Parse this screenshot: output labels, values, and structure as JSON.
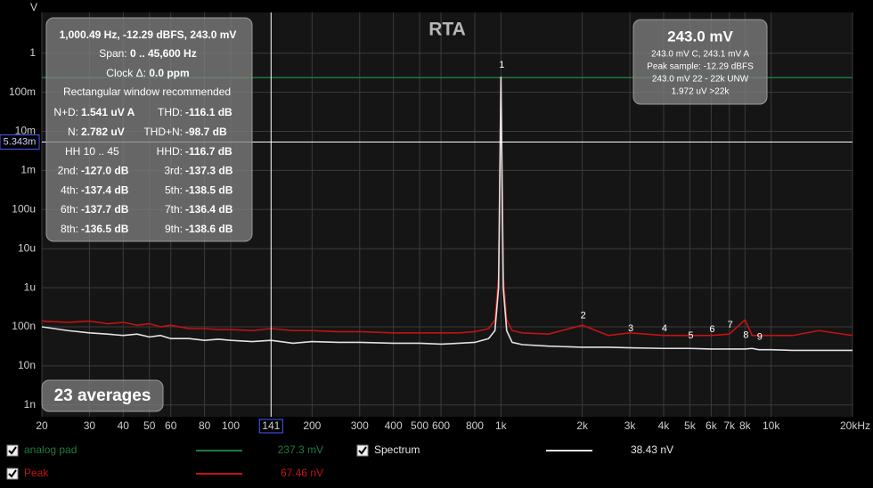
{
  "chart_data": {
    "type": "line",
    "title": "RTA",
    "y_label": "V",
    "log_x": true,
    "log_y": true,
    "grid": true,
    "xlim": [
      20,
      20000
    ],
    "ylim": [
      5e-10,
      11
    ],
    "xticks": [
      20,
      30,
      40,
      50,
      60,
      80,
      100,
      200,
      300,
      400,
      500,
      600,
      800,
      {
        "value": 1000,
        "label": "1k"
      },
      {
        "value": 2000,
        "label": "2k"
      },
      {
        "value": 3000,
        "label": "3k"
      },
      {
        "value": 4000,
        "label": "4k"
      },
      {
        "value": 5000,
        "label": "5k"
      },
      {
        "value": 6000,
        "label": "6k"
      },
      {
        "value": 7000,
        "label": "7k"
      },
      {
        "value": 8000,
        "label": "8k"
      },
      {
        "value": 10000,
        "label": "10k"
      },
      {
        "value": 20000,
        "label": "20kHz"
      }
    ],
    "yticks": [
      {
        "value": 1e-09,
        "label": "1n"
      },
      {
        "value": 1e-08,
        "label": "10n"
      },
      {
        "value": 1e-07,
        "label": "100n"
      },
      {
        "value": 1e-06,
        "label": "1u"
      },
      {
        "value": 1e-05,
        "label": "10u"
      },
      {
        "value": 0.0001,
        "label": "100u"
      },
      {
        "value": 0.001,
        "label": "1m"
      },
      {
        "value": 0.01,
        "label": "10m"
      },
      {
        "value": 0.1,
        "label": "100m"
      },
      1
    ],
    "x": [
      20,
      25,
      30,
      35,
      40,
      45,
      50,
      55,
      60,
      70,
      80,
      90,
      100,
      120,
      141,
      170,
      200,
      250,
      300,
      400,
      500,
      600,
      700,
      800,
      900,
      950,
      980,
      1000,
      1020,
      1050,
      1100,
      1200,
      1500,
      2000,
      2500,
      3000,
      4000,
      5000,
      6000,
      7000,
      8000,
      8500,
      9000,
      10000,
      12000,
      15000,
      20000
    ],
    "series": [
      {
        "name": "analog pad",
        "color": "#1f7a3e",
        "readout": "237.3 mV",
        "values": [
          0.2373,
          0.2373,
          0.2373,
          0.2373,
          0.2373,
          0.2373,
          0.2373,
          0.2373,
          0.2373,
          0.2373,
          0.2373,
          0.2373,
          0.2373,
          0.2373,
          0.2373,
          0.2373,
          0.2373,
          0.2373,
          0.2373,
          0.2373,
          0.2373,
          0.2373,
          0.2373,
          0.2373,
          0.2373,
          0.2373,
          0.2373,
          0.2373,
          0.2373,
          0.2373,
          0.2373,
          0.2373,
          0.2373,
          0.2373,
          0.2373,
          0.2373,
          0.2373,
          0.2373,
          0.2373,
          0.2373,
          0.2373,
          0.2373,
          0.2373,
          0.2373,
          0.2373,
          0.2373,
          0.2373
        ]
      },
      {
        "name": "Peak",
        "color": "#c41212",
        "readout": "67.46 nV",
        "values": [
          1.4e-07,
          1.3e-07,
          1.4e-07,
          1.2e-07,
          1.3e-07,
          1.1e-07,
          1.2e-07,
          1e-07,
          1.1e-07,
          9e-08,
          9e-08,
          8.5e-08,
          8.5e-08,
          8e-08,
          9e-08,
          8e-08,
          8e-08,
          7.5e-08,
          7.5e-08,
          7e-08,
          7e-08,
          7e-08,
          7e-08,
          7.5e-08,
          9e-08,
          1.5e-07,
          2e-06,
          0.243,
          2e-06,
          1.5e-07,
          8e-08,
          7e-08,
          6.5e-08,
          1.1e-07,
          6e-08,
          7e-08,
          6e-08,
          6e-08,
          6e-08,
          6.5e-08,
          1.5e-07,
          6e-08,
          6e-08,
          6e-08,
          6e-08,
          8e-08,
          6e-08
        ]
      },
      {
        "name": "Spectrum",
        "color": "#e2e2e2",
        "readout": "38.43 nV",
        "values": [
          1e-07,
          8e-08,
          7e-08,
          6.5e-08,
          6e-08,
          6.5e-08,
          5.5e-08,
          6e-08,
          5e-08,
          5e-08,
          4.5e-08,
          4.8e-08,
          4.5e-08,
          4.2e-08,
          4.5e-08,
          3.8e-08,
          4.2e-08,
          4e-08,
          4e-08,
          3.8e-08,
          3.8e-08,
          3.6e-08,
          3.8e-08,
          4e-08,
          5e-08,
          8e-08,
          1e-06,
          0.243,
          1e-06,
          8e-08,
          4e-08,
          3.5e-08,
          3.2e-08,
          3e-08,
          3e-08,
          2.9e-08,
          2.8e-08,
          2.8e-08,
          2.7e-08,
          2.7e-08,
          2.7e-08,
          2.8e-08,
          2.6e-08,
          2.6e-08,
          2.5e-08,
          2.5e-08,
          2.5e-08
        ]
      }
    ],
    "harmonic_labels": [
      {
        "n": 1,
        "x": 1000,
        "y": 0.5
      },
      {
        "n": 2,
        "x": 2000,
        "y": 1.9e-07
      },
      {
        "n": 3,
        "x": 3000,
        "y": 9e-08
      },
      {
        "n": 4,
        "x": 4000,
        "y": 9e-08
      },
      {
        "n": 5,
        "x": 5000,
        "y": 5.9e-08
      },
      {
        "n": 6,
        "x": 6000,
        "y": 8.5e-08
      },
      {
        "n": 7,
        "x": 7000,
        "y": 1.1e-07
      },
      {
        "n": 8,
        "x": 8000,
        "y": 6e-08
      },
      {
        "n": 9,
        "x": 9000,
        "y": 5.5e-08
      }
    ],
    "cursor": {
      "x": 141,
      "y": {
        "value": 0.005343,
        "label": "5.343m"
      }
    },
    "averages": "23 averages"
  },
  "left_panel": {
    "header": "1,000.49 Hz, -12.29 dBFS, 243.0 mV",
    "span": {
      "label": "Span: ",
      "value": "0 .. 45,600 Hz"
    },
    "clock": {
      "label": "Clock Δ: ",
      "value": "0.0 ppm"
    },
    "note": "Rectangular window recommended",
    "rows": [
      [
        {
          "label": "N+D:",
          "value": "1.541 uV A"
        },
        {
          "label": "THD:",
          "value": "-116.1 dB"
        }
      ],
      [
        {
          "label": "N:",
          "value": "2.782 uV"
        },
        {
          "label": "THD+N:",
          "value": "-98.7 dB"
        }
      ],
      [
        {
          "text": "HH 10 .. 45"
        },
        {
          "label": "HHD:",
          "value": "-116.7 dB"
        }
      ],
      [
        {
          "label": "2nd:",
          "value": "-127.0 dB"
        },
        {
          "label": "3rd:",
          "value": "-137.3 dB"
        }
      ],
      [
        {
          "label": "4th:",
          "value": "-137.4 dB"
        },
        {
          "label": "5th:",
          "value": "-138.5 dB"
        }
      ],
      [
        {
          "label": "6th:",
          "value": "-137.7 dB"
        },
        {
          "label": "7th:",
          "value": "-136.4 dB"
        }
      ],
      [
        {
          "label": "8th:",
          "value": "-136.5 dB"
        },
        {
          "label": "9th:",
          "value": "-138.6 dB"
        }
      ]
    ]
  },
  "right_panel": {
    "main": "243.0 mV",
    "lines": [
      "243.0 mV C, 243.1 mV A",
      "Peak sample: -12.29 dBFS",
      "243.0 mV 22 - 22k UNW",
      "1.972 uV >22k"
    ]
  }
}
